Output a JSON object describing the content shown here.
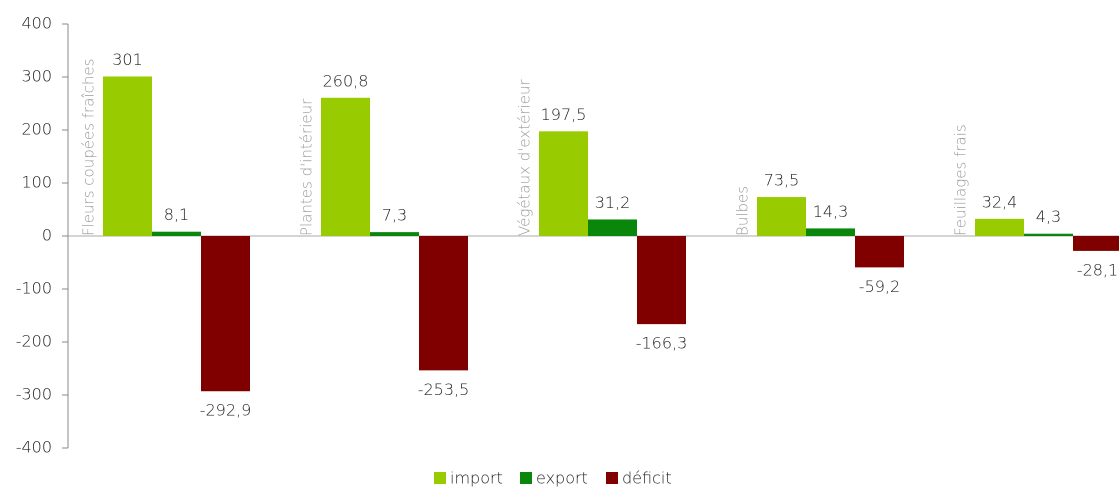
{
  "chart_data": {
    "type": "bar",
    "categories": [
      "Fleurs coupées fraîches",
      "Plantes d'intérieur",
      "Végétaux d'extérieur",
      "Bulbes",
      "Feuillages frais"
    ],
    "series": [
      {
        "name": "import",
        "color": "#99cc00",
        "values": [
          301,
          260.8,
          197.5,
          73.5,
          32.4
        ],
        "value_labels": [
          "301",
          "260,8",
          "197,5",
          "73,5",
          "32,4"
        ]
      },
      {
        "name": "export",
        "color": "#0a860a",
        "values": [
          8.1,
          7.3,
          31.2,
          14.3,
          4.3
        ],
        "value_labels": [
          "8,1",
          "7,3",
          "31,2",
          "14,3",
          "4,3"
        ]
      },
      {
        "name": "déficit",
        "color": "#800000",
        "values": [
          -292.9,
          -253.5,
          -166.3,
          -59.2,
          -28.1
        ],
        "value_labels": [
          "-292,9",
          "-253,5",
          "-166,3",
          "-59,2",
          "-28,1"
        ]
      }
    ],
    "ylim": [
      -400,
      400
    ],
    "yticks": [
      -400,
      -300,
      -200,
      -100,
      0,
      100,
      200,
      300,
      400
    ],
    "legend": "bottom"
  }
}
